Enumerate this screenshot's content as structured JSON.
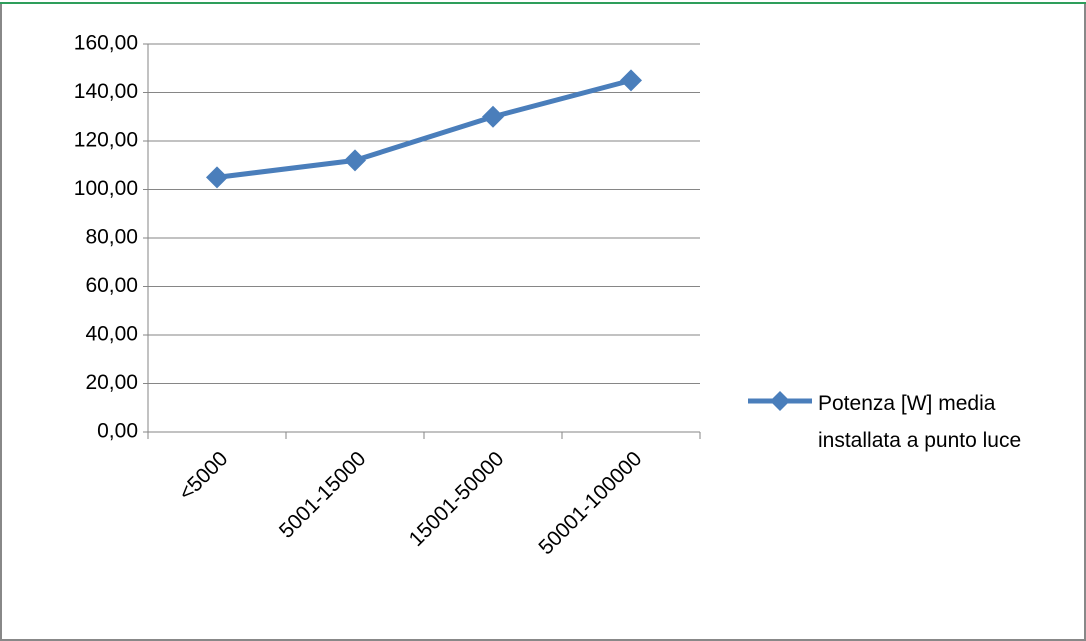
{
  "chart_data": {
    "type": "line",
    "categories": [
      "<5000",
      "5001-15000",
      "15001-50000",
      "50001-100000"
    ],
    "series": [
      {
        "name": "Potenza [W] media installata a punto luce",
        "color": "#4a7ebb",
        "values": [
          105,
          112,
          130,
          145
        ]
      }
    ],
    "ylim": [
      0,
      160
    ],
    "yticks": [
      {
        "value": 0,
        "label": "0,00"
      },
      {
        "value": 20,
        "label": "20,00"
      },
      {
        "value": 40,
        "label": "40,00"
      },
      {
        "value": 60,
        "label": "60,00"
      },
      {
        "value": 80,
        "label": "80,00"
      },
      {
        "value": 100,
        "label": "100,00"
      },
      {
        "value": 120,
        "label": "120,00"
      },
      {
        "value": 140,
        "label": "140,00"
      },
      {
        "value": 160,
        "label": "160,00"
      }
    ],
    "grid": true,
    "legend": "right"
  }
}
